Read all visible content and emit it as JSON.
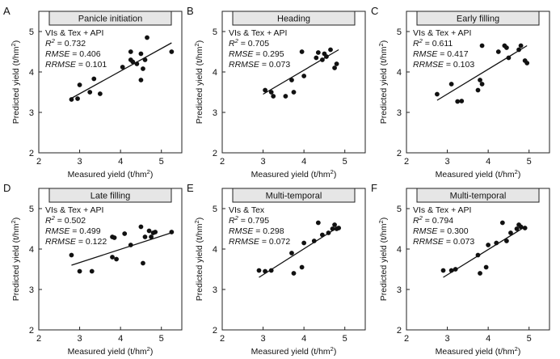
{
  "chart_data": [
    {
      "type": "scatter",
      "panel_label": "A",
      "title": "Panicle initiation",
      "xlabel": "Measured yield (t/hm²)",
      "ylabel": "Predicted yield (t/hm²)",
      "xlim": [
        2,
        5.5
      ],
      "ylim": [
        2,
        5.5
      ],
      "xticks": [
        2,
        3,
        4,
        5
      ],
      "yticks": [
        2,
        3,
        4,
        5
      ],
      "stats": {
        "features": "VIs & Tex + API",
        "r2": "R² = 0.732",
        "rmse": "RMSE = 0.406",
        "rrmse": "RRMSE = 0.101"
      },
      "fit_line": [
        [
          2.8,
          3.35
        ],
        [
          5.25,
          4.72
        ]
      ],
      "points": [
        [
          2.8,
          3.32
        ],
        [
          2.95,
          3.34
        ],
        [
          3.0,
          3.68
        ],
        [
          3.25,
          3.5
        ],
        [
          3.35,
          3.83
        ],
        [
          3.5,
          3.46
        ],
        [
          4.05,
          4.12
        ],
        [
          4.25,
          4.3
        ],
        [
          4.25,
          4.5
        ],
        [
          4.3,
          4.25
        ],
        [
          4.4,
          4.2
        ],
        [
          4.5,
          4.45
        ],
        [
          4.5,
          3.8
        ],
        [
          4.55,
          4.08
        ],
        [
          4.6,
          4.3
        ],
        [
          4.65,
          4.85
        ],
        [
          5.25,
          4.5
        ]
      ]
    },
    {
      "type": "scatter",
      "panel_label": "B",
      "title": "Heading",
      "xlabel": "Measured yield (t/hm²)",
      "ylabel": "Predicted yield (t/hm²)",
      "xlim": [
        2,
        5.5
      ],
      "ylim": [
        2,
        5.5
      ],
      "xticks": [
        2,
        3,
        4,
        5
      ],
      "yticks": [
        2,
        3,
        4,
        5
      ],
      "stats": {
        "features": "VIs & Tex + API",
        "r2": "R² = 0.705",
        "rmse": "RMSE = 0.295",
        "rrmse": "RRMSE = 0.073"
      },
      "fit_line": [
        [
          3.0,
          3.45
        ],
        [
          4.85,
          4.55
        ]
      ],
      "points": [
        [
          3.05,
          3.55
        ],
        [
          3.2,
          3.5
        ],
        [
          3.25,
          3.4
        ],
        [
          3.55,
          3.4
        ],
        [
          3.7,
          3.8
        ],
        [
          3.75,
          3.5
        ],
        [
          3.95,
          4.5
        ],
        [
          4.0,
          3.9
        ],
        [
          4.3,
          4.35
        ],
        [
          4.35,
          4.48
        ],
        [
          4.45,
          4.3
        ],
        [
          4.5,
          4.45
        ],
        [
          4.55,
          4.38
        ],
        [
          4.65,
          4.55
        ],
        [
          4.75,
          4.1
        ],
        [
          4.8,
          4.2
        ]
      ]
    },
    {
      "type": "scatter",
      "panel_label": "C",
      "title": "Early filling",
      "xlabel": "Measured yield (t/hm²)",
      "ylabel": "Predicted yield (t/hm²)",
      "xlim": [
        2,
        5.5
      ],
      "ylim": [
        2,
        5.5
      ],
      "xticks": [
        2,
        3,
        4,
        5
      ],
      "yticks": [
        2,
        3,
        4,
        5
      ],
      "stats": {
        "features": "VIs & Tex + API",
        "r2": "R² = 0.611",
        "rmse": "RMSE = 0.417",
        "rrmse": "RRMSE = 0.103"
      },
      "fit_line": [
        [
          2.75,
          3.3
        ],
        [
          4.95,
          4.65
        ]
      ],
      "points": [
        [
          2.75,
          3.45
        ],
        [
          3.1,
          3.7
        ],
        [
          3.25,
          3.27
        ],
        [
          3.35,
          3.28
        ],
        [
          3.75,
          3.55
        ],
        [
          3.8,
          3.8
        ],
        [
          3.85,
          4.65
        ],
        [
          3.85,
          3.7
        ],
        [
          4.25,
          4.5
        ],
        [
          4.4,
          4.65
        ],
        [
          4.45,
          4.6
        ],
        [
          4.5,
          4.35
        ],
        [
          4.75,
          4.55
        ],
        [
          4.8,
          4.65
        ],
        [
          4.9,
          4.28
        ],
        [
          4.95,
          4.22
        ]
      ]
    },
    {
      "type": "scatter",
      "panel_label": "D",
      "title": "Late filling",
      "xlabel": "Measured yield (t/hm²)",
      "ylabel": "Predicted yield (t/hm²)",
      "xlim": [
        2,
        5.5
      ],
      "ylim": [
        2,
        5.5
      ],
      "xticks": [
        2,
        3,
        4,
        5
      ],
      "yticks": [
        2,
        3,
        4,
        5
      ],
      "stats": {
        "features": "VIs & Tex + API",
        "r2": "R² = 0.502",
        "rmse": "RMSE = 0.499",
        "rrmse": "RRMSE = 0.122"
      },
      "fit_line": [
        [
          2.8,
          3.6
        ],
        [
          5.3,
          4.42
        ]
      ],
      "points": [
        [
          2.8,
          3.85
        ],
        [
          3.0,
          3.45
        ],
        [
          3.3,
          3.45
        ],
        [
          3.8,
          3.8
        ],
        [
          3.8,
          4.3
        ],
        [
          3.85,
          4.28
        ],
        [
          3.9,
          3.75
        ],
        [
          4.1,
          4.38
        ],
        [
          4.25,
          4.1
        ],
        [
          4.5,
          4.55
        ],
        [
          4.55,
          3.65
        ],
        [
          4.6,
          4.3
        ],
        [
          4.7,
          4.45
        ],
        [
          4.75,
          4.3
        ],
        [
          4.8,
          4.4
        ],
        [
          4.85,
          4.42
        ],
        [
          5.25,
          4.42
        ]
      ]
    },
    {
      "type": "scatter",
      "panel_label": "E",
      "title": "Multi-temporal",
      "xlabel": "Measured yield (t/hm²)",
      "ylabel": "Predicted yield (t/hm²)",
      "xlim": [
        2,
        5.5
      ],
      "ylim": [
        2,
        5.5
      ],
      "xticks": [
        2,
        3,
        4,
        5
      ],
      "yticks": [
        2,
        3,
        4,
        5
      ],
      "stats": {
        "features": "VIs & Tex",
        "r2": "R² = 0.795",
        "rmse": "RMSE = 0.298",
        "rrmse": "RRMSE = 0.072"
      },
      "fit_line": [
        [
          2.9,
          3.3
        ],
        [
          4.85,
          4.55
        ]
      ],
      "points": [
        [
          2.9,
          3.47
        ],
        [
          3.05,
          3.45
        ],
        [
          3.2,
          3.47
        ],
        [
          3.7,
          3.9
        ],
        [
          3.75,
          3.4
        ],
        [
          3.95,
          3.55
        ],
        [
          4.0,
          4.15
        ],
        [
          4.25,
          4.2
        ],
        [
          4.35,
          4.65
        ],
        [
          4.45,
          4.35
        ],
        [
          4.6,
          4.4
        ],
        [
          4.7,
          4.5
        ],
        [
          4.75,
          4.6
        ],
        [
          4.8,
          4.5
        ],
        [
          4.85,
          4.52
        ]
      ]
    },
    {
      "type": "scatter",
      "panel_label": "F",
      "title": "Multi-temporal",
      "xlabel": "Measured yield (t/hm²)",
      "ylabel": "Predicted yield (t/hm²)",
      "xlim": [
        2,
        5.5
      ],
      "ylim": [
        2,
        5.5
      ],
      "xticks": [
        2,
        3,
        4,
        5
      ],
      "yticks": [
        2,
        3,
        4,
        5
      ],
      "stats": {
        "features": "VIs & Tex + API",
        "r2": "R² = 0.794",
        "rmse": "RMSE = 0.300",
        "rrmse": "RRMSE = 0.073"
      },
      "fit_line": [
        [
          2.9,
          3.3
        ],
        [
          4.9,
          4.55
        ]
      ],
      "points": [
        [
          2.9,
          3.47
        ],
        [
          3.1,
          3.47
        ],
        [
          3.2,
          3.5
        ],
        [
          3.75,
          3.85
        ],
        [
          3.8,
          3.4
        ],
        [
          3.95,
          3.55
        ],
        [
          4.0,
          4.1
        ],
        [
          4.2,
          4.15
        ],
        [
          4.35,
          4.65
        ],
        [
          4.45,
          4.2
        ],
        [
          4.55,
          4.4
        ],
        [
          4.7,
          4.5
        ],
        [
          4.75,
          4.6
        ],
        [
          4.8,
          4.55
        ],
        [
          4.9,
          4.52
        ]
      ]
    }
  ]
}
